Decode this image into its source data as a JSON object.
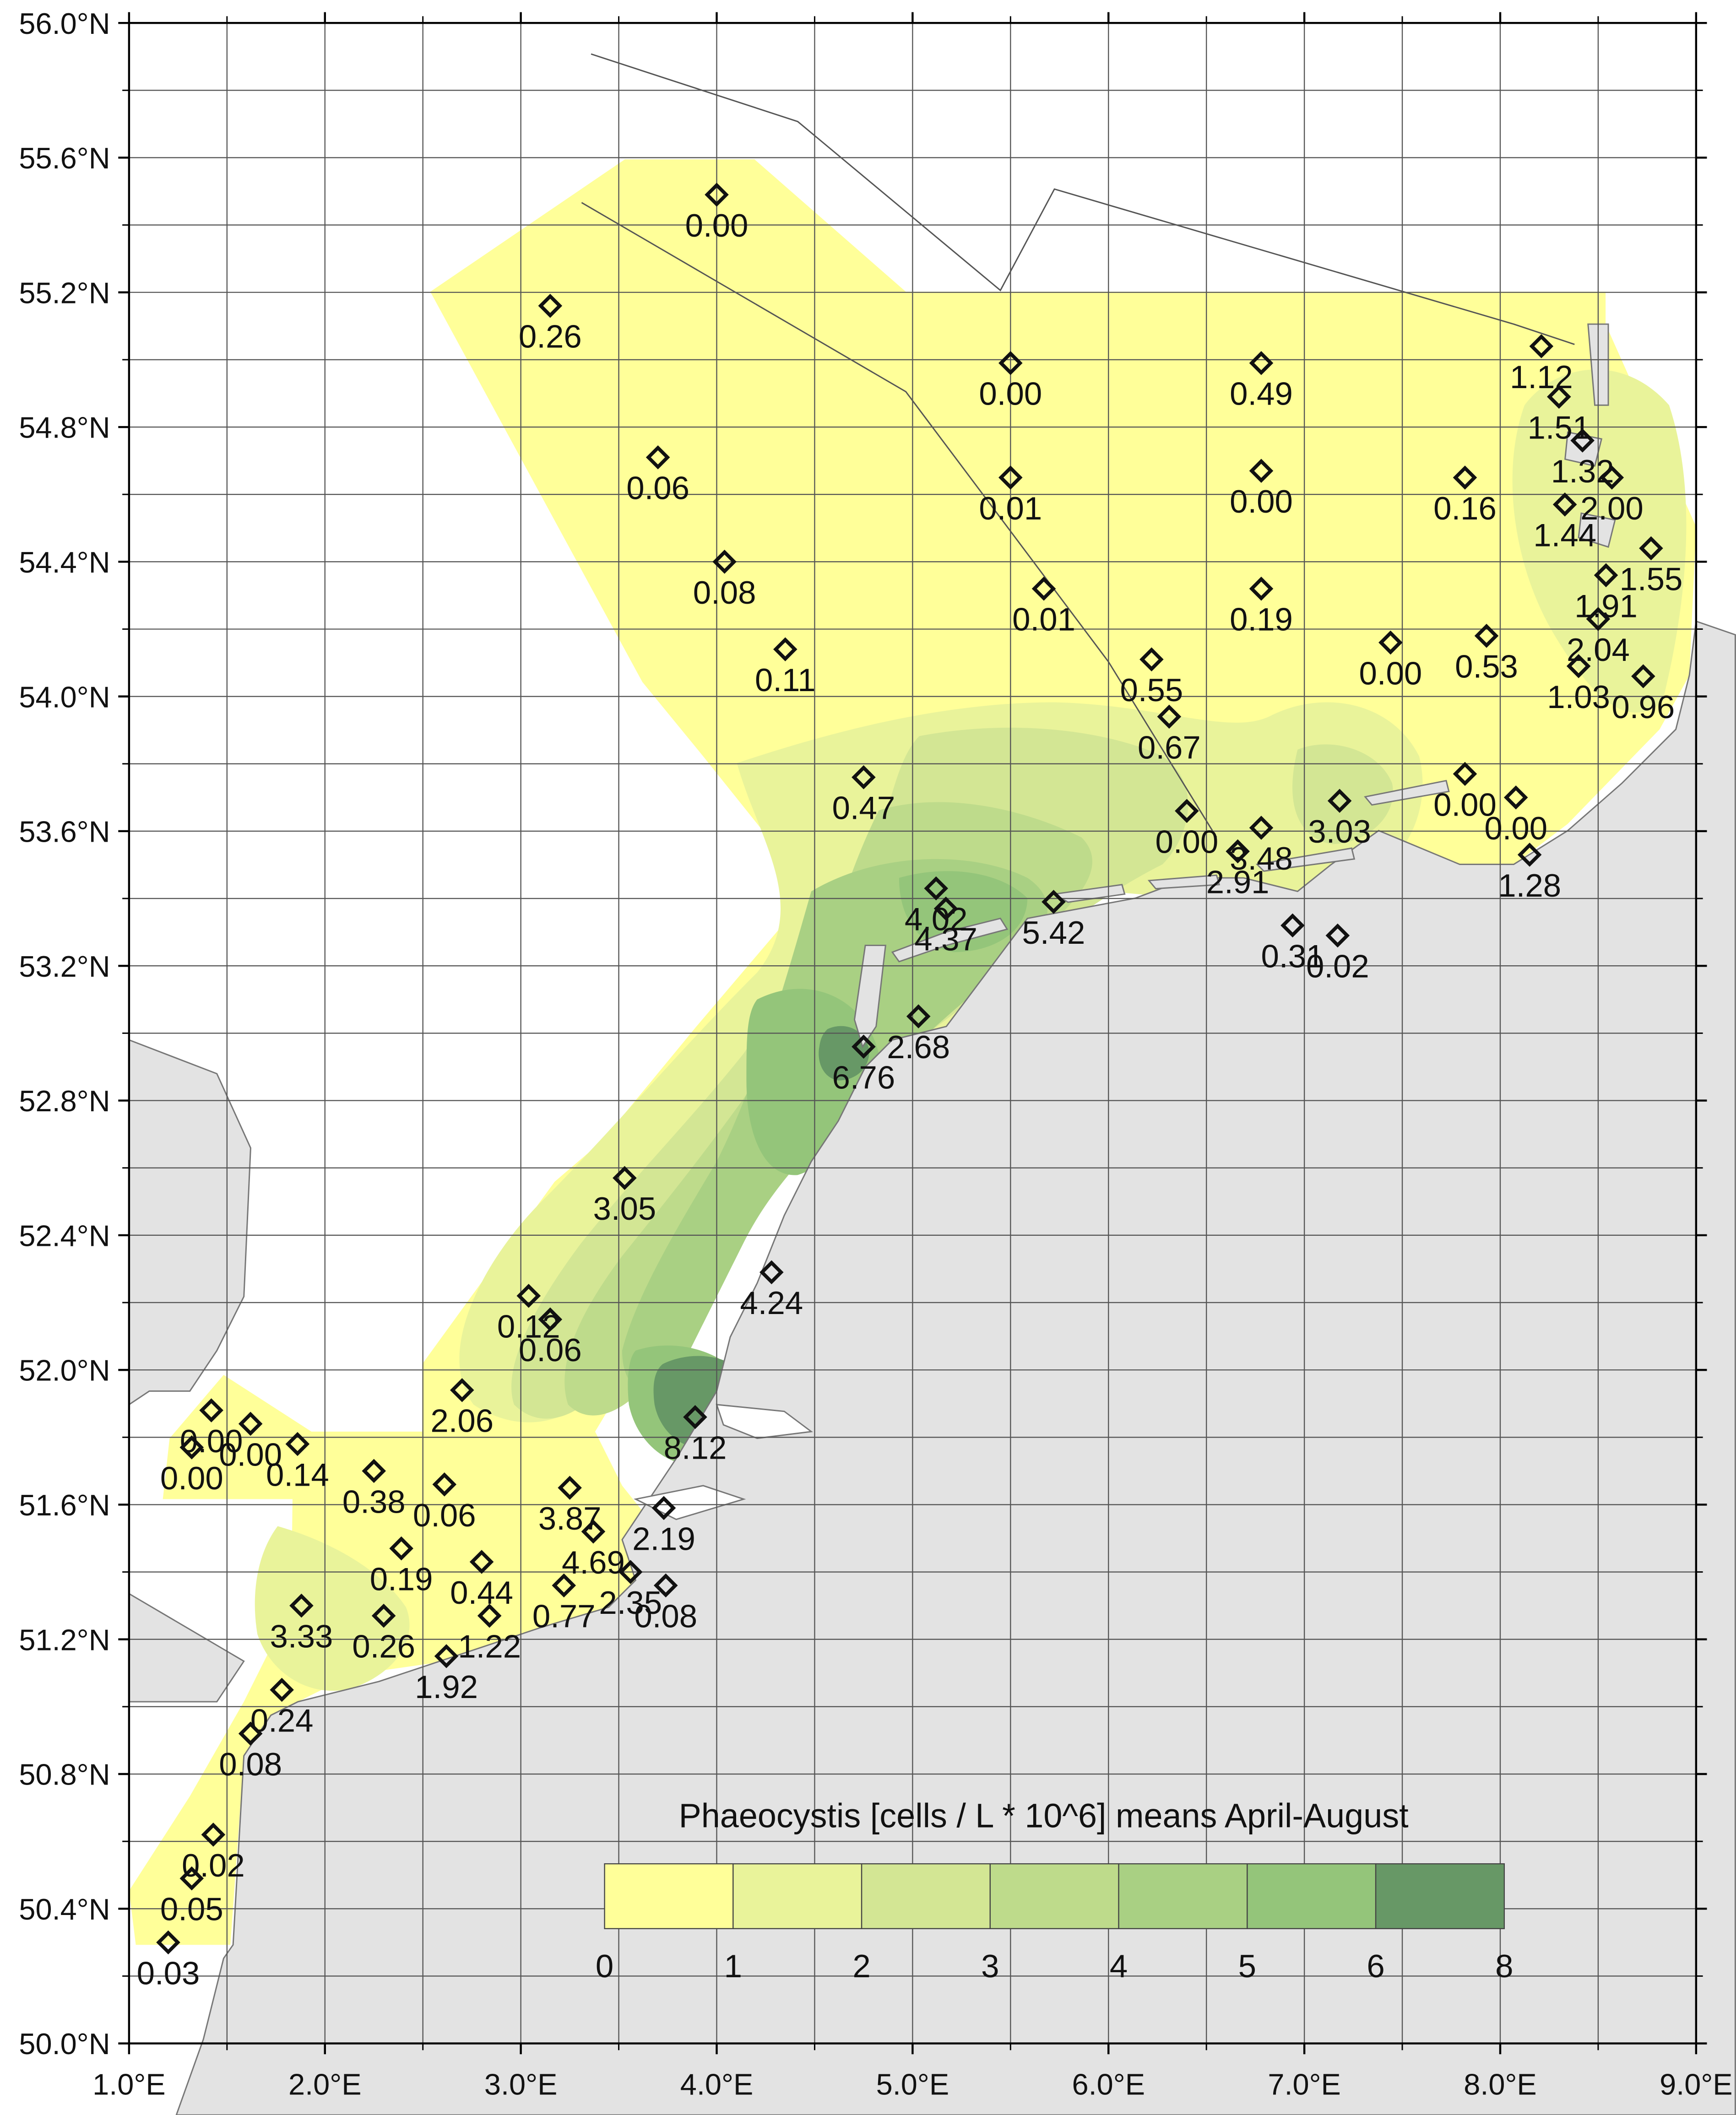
{
  "map": {
    "legend_title": "Phaeocystis [cells / L * 10^6] means April-August",
    "legend_ticks": [
      "0",
      "1",
      "2",
      "3",
      "4",
      "5",
      "6",
      "8"
    ],
    "legend_colors": [
      "#ffff99",
      "#e9f39a",
      "#d3e694",
      "#bedb8b",
      "#a9d083",
      "#94c57a",
      "#679866"
    ],
    "land_color": "#e3e3e3",
    "extent": {
      "lon": [
        1.0,
        9.0
      ],
      "lat": [
        50.0,
        56.0
      ]
    },
    "lat_labels": [
      "50.0°N",
      "50.4°N",
      "50.8°N",
      "51.2°N",
      "51.6°N",
      "52.0°N",
      "52.4°N",
      "52.8°N",
      "53.2°N",
      "53.6°N",
      "54.0°N",
      "54.4°N",
      "54.8°N",
      "55.2°N",
      "55.6°N",
      "56.0°N"
    ],
    "lon_labels": [
      "1.0°E",
      "2.0°E",
      "3.0°E",
      "4.0°E",
      "5.0°E",
      "6.0°E",
      "7.0°E",
      "8.0°E",
      "9.0°E"
    ],
    "stations": [
      {
        "lon": 4.0,
        "lat": 55.49,
        "value": "0.00"
      },
      {
        "lon": 3.15,
        "lat": 55.16,
        "value": "0.26"
      },
      {
        "lon": 5.5,
        "lat": 54.99,
        "value": "0.00"
      },
      {
        "lon": 6.78,
        "lat": 54.99,
        "value": "0.49"
      },
      {
        "lon": 8.21,
        "lat": 55.04,
        "value": "1.12"
      },
      {
        "lon": 8.3,
        "lat": 54.89,
        "value": "1.51"
      },
      {
        "lon": 3.7,
        "lat": 54.71,
        "value": "0.06"
      },
      {
        "lon": 5.5,
        "lat": 54.65,
        "value": "0.01"
      },
      {
        "lon": 6.78,
        "lat": 54.67,
        "value": "0.00"
      },
      {
        "lon": 7.82,
        "lat": 54.65,
        "value": "0.16"
      },
      {
        "lon": 8.42,
        "lat": 54.76,
        "value": "1.32"
      },
      {
        "lon": 8.57,
        "lat": 54.65,
        "value": "2.00"
      },
      {
        "lon": 8.33,
        "lat": 54.57,
        "value": "1.44"
      },
      {
        "lon": 4.04,
        "lat": 54.4,
        "value": "0.08"
      },
      {
        "lon": 5.67,
        "lat": 54.32,
        "value": "0.01"
      },
      {
        "lon": 6.78,
        "lat": 54.32,
        "value": "0.19"
      },
      {
        "lon": 8.77,
        "lat": 54.44,
        "value": "1.55"
      },
      {
        "lon": 8.54,
        "lat": 54.36,
        "value": "1.91"
      },
      {
        "lon": 4.35,
        "lat": 54.14,
        "value": "0.11"
      },
      {
        "lon": 6.22,
        "lat": 54.11,
        "value": "0.55"
      },
      {
        "lon": 7.44,
        "lat": 54.16,
        "value": "0.00"
      },
      {
        "lon": 7.93,
        "lat": 54.18,
        "value": "0.53"
      },
      {
        "lon": 8.5,
        "lat": 54.23,
        "value": "2.04"
      },
      {
        "lon": 8.4,
        "lat": 54.09,
        "value": "1.03"
      },
      {
        "lon": 8.73,
        "lat": 54.06,
        "value": "0.96"
      },
      {
        "lon": 6.31,
        "lat": 53.94,
        "value": "0.67"
      },
      {
        "lon": 4.75,
        "lat": 53.76,
        "value": "0.47"
      },
      {
        "lon": 7.82,
        "lat": 53.77,
        "value": "0.00"
      },
      {
        "lon": 8.08,
        "lat": 53.7,
        "value": "0.00"
      },
      {
        "lon": 7.18,
        "lat": 53.69,
        "value": "3.03"
      },
      {
        "lon": 6.4,
        "lat": 53.66,
        "value": "0.00"
      },
      {
        "lon": 6.78,
        "lat": 53.61,
        "value": "3.48"
      },
      {
        "lon": 6.66,
        "lat": 53.54,
        "value": "2.91"
      },
      {
        "lon": 8.15,
        "lat": 53.53,
        "value": "1.28"
      },
      {
        "lon": 5.12,
        "lat": 53.43,
        "value": "4.02"
      },
      {
        "lon": 5.17,
        "lat": 53.37,
        "value": "4.37"
      },
      {
        "lon": 5.72,
        "lat": 53.39,
        "value": "5.42"
      },
      {
        "lon": 6.94,
        "lat": 53.32,
        "value": "0.31"
      },
      {
        "lon": 7.17,
        "lat": 53.29,
        "value": "0.02"
      },
      {
        "lon": 5.03,
        "lat": 53.05,
        "value": "2.68"
      },
      {
        "lon": 4.75,
        "lat": 52.96,
        "value": "6.76"
      },
      {
        "lon": 3.53,
        "lat": 52.57,
        "value": "3.05"
      },
      {
        "lon": 4.28,
        "lat": 52.29,
        "value": "4.24"
      },
      {
        "lon": 3.04,
        "lat": 52.22,
        "value": "0.12"
      },
      {
        "lon": 3.15,
        "lat": 52.15,
        "value": "0.06"
      },
      {
        "lon": 2.7,
        "lat": 51.94,
        "value": "2.06"
      },
      {
        "lon": 3.89,
        "lat": 51.86,
        "value": "8.12"
      },
      {
        "lon": 1.42,
        "lat": 51.88,
        "value": "0.00"
      },
      {
        "lon": 1.62,
        "lat": 51.84,
        "value": "0.00"
      },
      {
        "lon": 1.32,
        "lat": 51.77,
        "value": "0.00"
      },
      {
        "lon": 1.86,
        "lat": 51.78,
        "value": "0.14"
      },
      {
        "lon": 2.25,
        "lat": 51.7,
        "value": "0.38"
      },
      {
        "lon": 2.61,
        "lat": 51.66,
        "value": "0.06"
      },
      {
        "lon": 3.25,
        "lat": 51.65,
        "value": "3.87"
      },
      {
        "lon": 3.73,
        "lat": 51.59,
        "value": "2.19"
      },
      {
        "lon": 3.37,
        "lat": 51.52,
        "value": "4.69"
      },
      {
        "lon": 2.39,
        "lat": 51.47,
        "value": "0.19"
      },
      {
        "lon": 2.8,
        "lat": 51.43,
        "value": "0.44"
      },
      {
        "lon": 3.56,
        "lat": 51.4,
        "value": "2.35"
      },
      {
        "lon": 3.22,
        "lat": 51.36,
        "value": "0.77"
      },
      {
        "lon": 3.74,
        "lat": 51.36,
        "value": "0.08"
      },
      {
        "lon": 1.88,
        "lat": 51.3,
        "value": "3.33"
      },
      {
        "lon": 2.3,
        "lat": 51.27,
        "value": "0.26"
      },
      {
        "lon": 2.84,
        "lat": 51.27,
        "value": "1.22"
      },
      {
        "lon": 2.62,
        "lat": 51.15,
        "value": "1.92"
      },
      {
        "lon": 1.78,
        "lat": 51.05,
        "value": "0.24"
      },
      {
        "lon": 1.62,
        "lat": 50.92,
        "value": "0.08"
      },
      {
        "lon": 1.43,
        "lat": 50.62,
        "value": "0.02"
      },
      {
        "lon": 1.32,
        "lat": 50.49,
        "value": "0.05"
      },
      {
        "lon": 1.2,
        "lat": 50.3,
        "value": "0.03"
      }
    ]
  }
}
